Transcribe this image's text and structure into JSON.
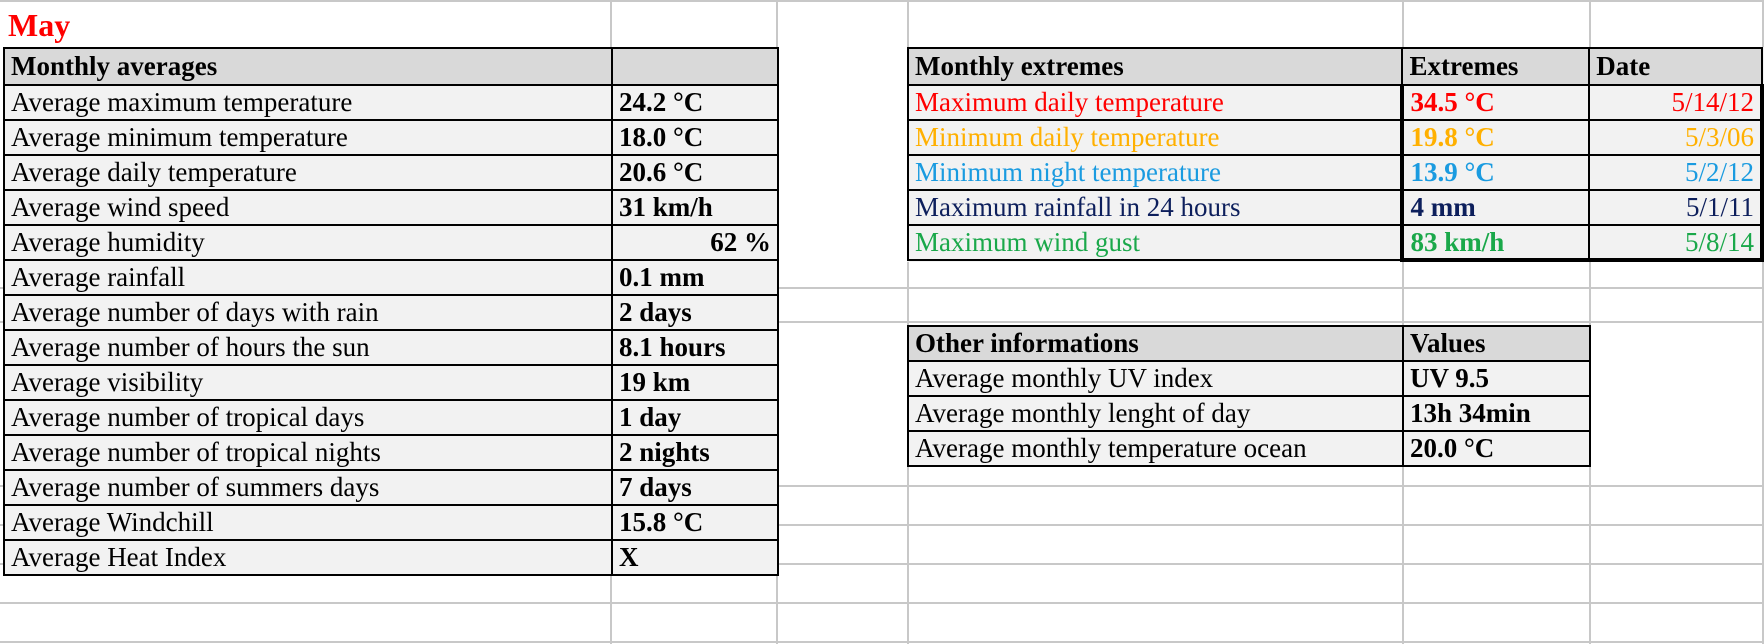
{
  "sheet": {
    "title": "May",
    "title_color": "#ff0000",
    "averages": {
      "header_label": "Monthly averages",
      "header_value": "",
      "rows": [
        {
          "label": "Average maximum temperature",
          "value": "24.2 °C"
        },
        {
          "label": "Average minimum temperature",
          "value": "18.0 °C"
        },
        {
          "label": "Average daily temperature",
          "value": "20.6 °C"
        },
        {
          "label": "Average wind speed",
          "value": "31 km/h"
        },
        {
          "label": "Average humidity",
          "value": "62 %"
        },
        {
          "label": "Average rainfall",
          "value": "0.1 mm"
        },
        {
          "label": "Average number of days with rain",
          "value": "2 days"
        },
        {
          "label": "Average number of hours the sun",
          "value": "8.1 hours"
        },
        {
          "label": "Average visibility",
          "value": "19 km"
        },
        {
          "label": "Average number of tropical days",
          "value": "1 day"
        },
        {
          "label": "Average number of tropical nights",
          "value": "2 nights"
        },
        {
          "label": "Average number of summers days",
          "value": "7 days"
        },
        {
          "label": "Average Windchill",
          "value": "15.8 °C"
        },
        {
          "label": "Average Heat Index",
          "value": "X"
        }
      ]
    },
    "extremes": {
      "header_label": "Monthly extremes",
      "header_value": "Extremes",
      "header_date": "Date",
      "rows": [
        {
          "label": "Maximum daily temperature",
          "value": "34.5 °C",
          "date": "5/14/12",
          "color": "#ff0000"
        },
        {
          "label": "Minimum daily temperature",
          "value": "19.8 °C",
          "date": "5/3/06",
          "color": "#ffb000"
        },
        {
          "label": "Minimum night temperature",
          "value": "13.9 °C",
          "date": "5/2/12",
          "color": "#1a9be0"
        },
        {
          "label": "Maximum rainfall in 24 hours",
          "value": "4 mm",
          "date": "5/1/11",
          "color": "#0d1f5c"
        },
        {
          "label": "Maximum wind gust",
          "value": "83 km/h",
          "date": "5/8/14",
          "color": "#1aa84a"
        }
      ]
    },
    "other": {
      "header_label": "Other informations",
      "header_value": "Values",
      "rows": [
        {
          "label": "Average monthly UV index",
          "value": "UV 9.5"
        },
        {
          "label": "Average monthly lenght of day",
          "value": "13h 34min"
        },
        {
          "label": "Average monthly temperature ocean",
          "value": "20.0 °C"
        }
      ]
    }
  }
}
